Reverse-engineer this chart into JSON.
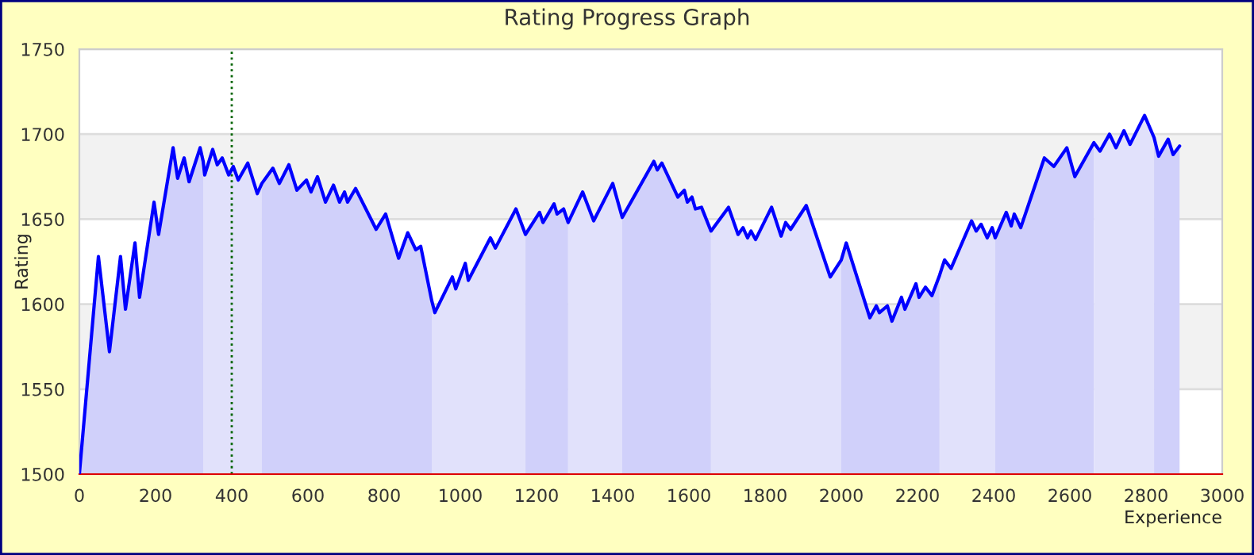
{
  "chart_data": {
    "type": "line",
    "title": "Rating Progress Graph",
    "xlabel": "Experience",
    "ylabel": "Rating",
    "xlim": [
      0,
      3000
    ],
    "xticks": [
      0,
      200,
      400,
      600,
      800,
      1000,
      1200,
      1400,
      1600,
      1800,
      2000,
      2200,
      2400,
      2600,
      2800,
      3000
    ],
    "ylim": [
      1500,
      1750
    ],
    "yticks": [
      1500,
      1550,
      1600,
      1650,
      1700,
      1750
    ],
    "grid": "y",
    "legend": false,
    "bands": [
      {
        "axis": "y",
        "from": 1650,
        "to": 1700,
        "color": "#f2f2f2"
      },
      {
        "axis": "y",
        "from": 1550,
        "to": 1600,
        "color": "#f2f2f2"
      }
    ],
    "ref_lines": [
      {
        "axis": "x",
        "value": 400,
        "color": "#006400",
        "line_style": "dotted"
      }
    ],
    "series": [
      {
        "type": "area",
        "color": "#d0d0fa",
        "x": [
          0,
          50,
          79,
          108,
          121,
          146,
          158,
          196,
          208,
          246,
          258,
          275,
          288,
          317,
          325
        ],
        "values": [
          1500,
          1628,
          1572,
          1628,
          1597,
          1636,
          1604,
          1660,
          1641,
          1692,
          1674,
          1686,
          1672,
          1692,
          1684
        ]
      },
      {
        "type": "area",
        "color": "#e1e1fb",
        "x": [
          325,
          329,
          350,
          362,
          375,
          392,
          404,
          417,
          442,
          467,
          479
        ],
        "values": [
          1684,
          1676,
          1691,
          1682,
          1686,
          1676,
          1681,
          1673,
          1683,
          1665,
          1671
        ]
      },
      {
        "type": "area",
        "color": "#d0d0fa",
        "x": [
          479,
          508,
          525,
          550,
          571,
          596,
          608,
          625,
          646,
          667,
          683,
          696,
          704,
          725,
          779,
          804,
          838,
          862,
          883,
          896,
          925
        ],
        "values": [
          1671,
          1680,
          1671,
          1682,
          1667,
          1673,
          1666,
          1675,
          1660,
          1670,
          1660,
          1666,
          1660,
          1668,
          1644,
          1653,
          1627,
          1642,
          1632,
          1634,
          1602
        ]
      },
      {
        "type": "area",
        "color": "#e1e1fb",
        "x": [
          925,
          933,
          979,
          988,
          1013,
          1021,
          1079,
          1092,
          1146,
          1171
        ],
        "values": [
          1602,
          1595,
          1616,
          1609,
          1624,
          1614,
          1639,
          1633,
          1656,
          1641
        ]
      },
      {
        "type": "area",
        "color": "#d0d0fa",
        "x": [
          1171,
          1208,
          1217,
          1246,
          1254,
          1271,
          1283
        ],
        "values": [
          1641,
          1654,
          1648,
          1659,
          1653,
          1656,
          1648
        ]
      },
      {
        "type": "area",
        "color": "#e1e1fb",
        "x": [
          1283,
          1321,
          1350,
          1400,
          1425
        ],
        "values": [
          1648,
          1666,
          1649,
          1671,
          1651
        ]
      },
      {
        "type": "area",
        "color": "#d0d0fa",
        "x": [
          1425,
          1508,
          1517,
          1529,
          1571,
          1588,
          1596,
          1608,
          1617,
          1633,
          1658
        ],
        "values": [
          1651,
          1684,
          1679,
          1683,
          1663,
          1667,
          1660,
          1663,
          1656,
          1657,
          1643
        ]
      },
      {
        "type": "area",
        "color": "#e1e1fb",
        "x": [
          1658,
          1704,
          1729,
          1742,
          1754,
          1763,
          1775,
          1817,
          1842,
          1854,
          1867,
          1908,
          1971,
          2000
        ],
        "values": [
          1643,
          1657,
          1641,
          1645,
          1639,
          1643,
          1638,
          1657,
          1640,
          1648,
          1644,
          1658,
          1616,
          1626
        ]
      },
      {
        "type": "area",
        "color": "#d0d0fa",
        "x": [
          2000,
          2013,
          2075,
          2092,
          2100,
          2121,
          2133,
          2158,
          2167,
          2196,
          2204,
          2221,
          2238,
          2258
        ],
        "values": [
          1626,
          1636,
          1592,
          1599,
          1595,
          1599,
          1590,
          1604,
          1597,
          1612,
          1604,
          1610,
          1605,
          1617
        ]
      },
      {
        "type": "area",
        "color": "#e1e1fb",
        "x": [
          2258,
          2271,
          2288,
          2342,
          2354,
          2367,
          2383,
          2396,
          2404
        ],
        "values": [
          1617,
          1626,
          1621,
          1649,
          1643,
          1647,
          1639,
          1645,
          1639
        ]
      },
      {
        "type": "area",
        "color": "#d0d0fa",
        "x": [
          2404,
          2433,
          2446,
          2454,
          2471,
          2533,
          2558,
          2592,
          2613,
          2663
        ],
        "values": [
          1639,
          1654,
          1646,
          1653,
          1645,
          1686,
          1681,
          1692,
          1675,
          1695
        ]
      },
      {
        "type": "area",
        "color": "#e1e1fb",
        "x": [
          2663,
          2679,
          2704,
          2721,
          2742,
          2758,
          2796,
          2821
        ],
        "values": [
          1695,
          1690,
          1700,
          1692,
          1702,
          1694,
          1711,
          1698
        ]
      },
      {
        "type": "area",
        "color": "#d0d0fa",
        "x": [
          2821,
          2833,
          2858,
          2871,
          2888
        ],
        "values": [
          1698,
          1687,
          1697,
          1688,
          1693
        ]
      },
      {
        "color": "#0000ff",
        "x": [
          0,
          50,
          79,
          108,
          121,
          146,
          158,
          196,
          208,
          246,
          258,
          275,
          288,
          317,
          325,
          329,
          350,
          362,
          375,
          392,
          404,
          417,
          442,
          467,
          479,
          508,
          525,
          550,
          571,
          596,
          608,
          625,
          646,
          667,
          683,
          696,
          704,
          725,
          779,
          804,
          838,
          862,
          883,
          896,
          925,
          933,
          979,
          988,
          1013,
          1021,
          1079,
          1092,
          1146,
          1171,
          1208,
          1217,
          1246,
          1254,
          1271,
          1283,
          1321,
          1350,
          1400,
          1425,
          1508,
          1517,
          1529,
          1571,
          1588,
          1596,
          1608,
          1617,
          1633,
          1658,
          1704,
          1729,
          1742,
          1754,
          1763,
          1775,
          1817,
          1842,
          1854,
          1867,
          1908,
          1971,
          2000,
          2013,
          2075,
          2092,
          2100,
          2121,
          2133,
          2158,
          2167,
          2196,
          2204,
          2221,
          2238,
          2258,
          2271,
          2288,
          2342,
          2354,
          2367,
          2383,
          2396,
          2404,
          2433,
          2446,
          2454,
          2471,
          2533,
          2558,
          2592,
          2613,
          2663,
          2679,
          2704,
          2721,
          2742,
          2758,
          2796,
          2821,
          2833,
          2858,
          2871,
          2888
        ],
        "values": [
          1500,
          1628,
          1572,
          1628,
          1597,
          1636,
          1604,
          1660,
          1641,
          1692,
          1674,
          1686,
          1672,
          1692,
          1684,
          1676,
          1691,
          1682,
          1686,
          1676,
          1681,
          1673,
          1683,
          1665,
          1671,
          1680,
          1671,
          1682,
          1667,
          1673,
          1666,
          1675,
          1660,
          1670,
          1660,
          1666,
          1660,
          1668,
          1644,
          1653,
          1627,
          1642,
          1632,
          1634,
          1602,
          1595,
          1616,
          1609,
          1624,
          1614,
          1639,
          1633,
          1656,
          1641,
          1654,
          1648,
          1659,
          1653,
          1656,
          1648,
          1666,
          1649,
          1671,
          1651,
          1684,
          1679,
          1683,
          1663,
          1667,
          1660,
          1663,
          1656,
          1657,
          1643,
          1657,
          1641,
          1645,
          1639,
          1643,
          1638,
          1657,
          1640,
          1648,
          1644,
          1658,
          1616,
          1626,
          1636,
          1592,
          1599,
          1595,
          1599,
          1590,
          1604,
          1597,
          1612,
          1604,
          1610,
          1605,
          1617,
          1626,
          1621,
          1649,
          1643,
          1647,
          1639,
          1645,
          1639,
          1654,
          1646,
          1653,
          1645,
          1686,
          1681,
          1692,
          1675,
          1695,
          1690,
          1700,
          1692,
          1702,
          1694,
          1711,
          1698,
          1687,
          1697,
          1688,
          1693
        ]
      }
    ]
  }
}
